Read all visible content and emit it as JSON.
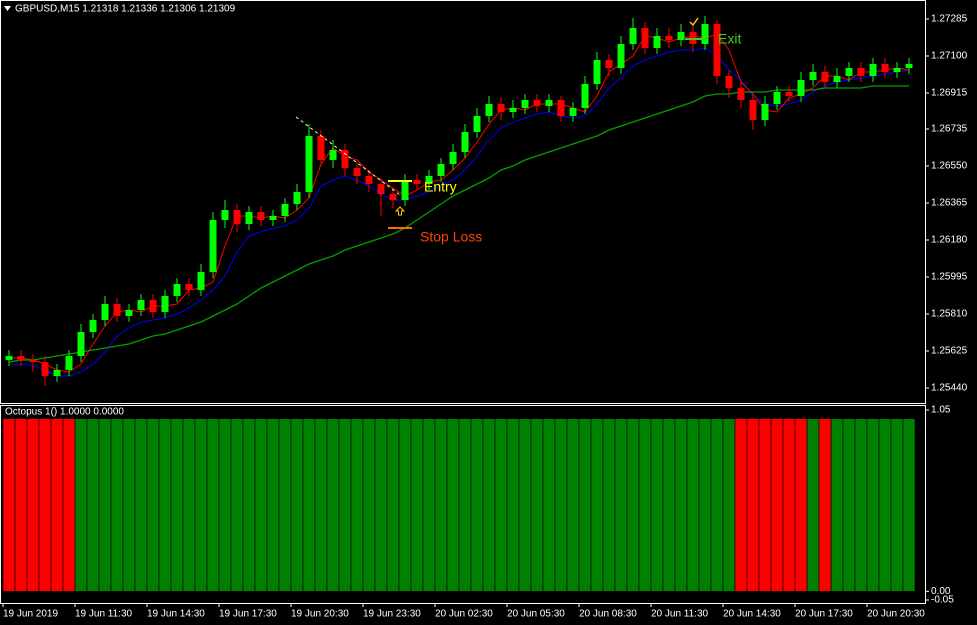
{
  "chart_data": [
    {
      "type": "candlestick",
      "title": "GBPUSD,M15 1.21318 1.21336 1.21306 1.21309",
      "x_labels": [
        "19 Jun 2019",
        "19 Jun 11:30",
        "19 Jun 14:30",
        "19 Jun 17:30",
        "19 Jun 20:30",
        "19 Jun 23:30",
        "20 Jun 02:30",
        "20 Jun 05:30",
        "20 Jun 08:30",
        "20 Jun 11:30",
        "20 Jun 14:30",
        "20 Jun 17:30",
        "20 Jun 20:30"
      ],
      "open": [
        1.2558,
        1.256,
        1.2558,
        1.2557,
        1.255,
        1.2553,
        1.256,
        1.2572,
        1.2578,
        1.2586,
        1.258,
        1.2583,
        1.2588,
        1.2582,
        1.259,
        1.2596,
        1.2593,
        1.2602,
        1.2628,
        1.2633,
        1.2626,
        1.2632,
        1.2628,
        1.263,
        1.2636,
        1.2642,
        1.267,
        1.2658,
        1.2663,
        1.2654,
        1.265,
        1.2646,
        1.2641,
        1.2638,
        1.2648,
        1.2646,
        1.265,
        1.2656,
        1.2662,
        1.2672,
        1.268,
        1.2686,
        1.2682,
        1.2684,
        1.2688,
        1.2685,
        1.2688,
        1.268,
        1.2684,
        1.2696,
        1.2708,
        1.2704,
        1.2716,
        1.2724,
        1.2714,
        1.272,
        1.2718,
        1.2722,
        1.2716,
        1.2726,
        1.27,
        1.2694,
        1.2688,
        1.2678,
        1.2686,
        1.2692,
        1.269,
        1.2698,
        1.2702,
        1.2697,
        1.27,
        1.2704,
        1.27,
        1.2706,
        1.2702,
        1.2704
      ],
      "high": [
        1.2563,
        1.2563,
        1.2561,
        1.256,
        1.2556,
        1.2563,
        1.2576,
        1.2581,
        1.259,
        1.2589,
        1.2586,
        1.2591,
        1.2591,
        1.2593,
        1.2599,
        1.2599,
        1.2606,
        1.2632,
        1.2638,
        1.2636,
        1.2635,
        1.2635,
        1.2633,
        1.2639,
        1.2646,
        1.2676,
        1.2673,
        1.2668,
        1.2666,
        1.2657,
        1.2653,
        1.2649,
        1.2644,
        1.2651,
        1.2651,
        1.2653,
        1.2659,
        1.2666,
        1.2676,
        1.2684,
        1.269,
        1.2689,
        1.2688,
        1.2691,
        1.2691,
        1.2691,
        1.269,
        1.2687,
        1.27,
        1.2712,
        1.2711,
        1.272,
        1.2729,
        1.2727,
        1.2724,
        1.2724,
        1.2726,
        1.2725,
        1.273,
        1.2728,
        1.2703,
        1.2697,
        1.2691,
        1.269,
        1.2695,
        1.2695,
        1.2702,
        1.2706,
        1.2705,
        1.2704,
        1.2707,
        1.2707,
        1.2709,
        1.2709,
        1.2707,
        1.2709
      ],
      "low": [
        1.2555,
        1.2555,
        1.2552,
        1.2545,
        1.2547,
        1.255,
        1.2557,
        1.2569,
        1.2575,
        1.2577,
        1.2577,
        1.258,
        1.2579,
        1.2579,
        1.2587,
        1.259,
        1.259,
        1.2599,
        1.2624,
        1.2622,
        1.2623,
        1.2625,
        1.2625,
        1.2627,
        1.2633,
        1.2639,
        1.2655,
        1.2654,
        1.265,
        1.2646,
        1.2642,
        1.263,
        1.2634,
        1.2635,
        1.2643,
        1.2643,
        1.2647,
        1.2653,
        1.2659,
        1.2669,
        1.2677,
        1.2678,
        1.2679,
        1.2681,
        1.2682,
        1.2682,
        1.2677,
        1.2677,
        1.2681,
        1.2693,
        1.27,
        1.2701,
        1.2713,
        1.2711,
        1.2711,
        1.2714,
        1.2715,
        1.2712,
        1.2713,
        1.2696,
        1.2689,
        1.2684,
        1.2673,
        1.2675,
        1.2683,
        1.2687,
        1.2687,
        1.2695,
        1.2694,
        1.2694,
        1.2697,
        1.2697,
        1.2697,
        1.2699,
        1.2699,
        1.2701
      ],
      "close": [
        1.256,
        1.2558,
        1.2557,
        1.255,
        1.2553,
        1.256,
        1.2572,
        1.2578,
        1.2586,
        1.258,
        1.2583,
        1.2588,
        1.2582,
        1.259,
        1.2596,
        1.2593,
        1.2602,
        1.2628,
        1.2633,
        1.2626,
        1.2632,
        1.2628,
        1.263,
        1.2636,
        1.2642,
        1.267,
        1.2658,
        1.2663,
        1.2654,
        1.265,
        1.2646,
        1.2641,
        1.2638,
        1.2648,
        1.2646,
        1.265,
        1.2656,
        1.2662,
        1.2672,
        1.268,
        1.2686,
        1.2682,
        1.2684,
        1.2688,
        1.2685,
        1.2688,
        1.268,
        1.2684,
        1.2696,
        1.2708,
        1.2704,
        1.2716,
        1.2724,
        1.2714,
        1.272,
        1.2718,
        1.2722,
        1.2716,
        1.2726,
        1.27,
        1.2694,
        1.2688,
        1.2678,
        1.2686,
        1.2692,
        1.269,
        1.2698,
        1.2702,
        1.2697,
        1.27,
        1.2704,
        1.27,
        1.2706,
        1.2702,
        1.2704,
        1.2706
      ],
      "up_color": "#00ff00",
      "down_color": "#ff0000",
      "lines": [
        {
          "color": "#0000ff",
          "values": [
            1.2556,
            1.2556,
            1.2555,
            1.2553,
            1.255,
            1.255,
            1.2552,
            1.2556,
            1.2562,
            1.257,
            1.2574,
            1.2577,
            1.2578,
            1.2579,
            1.2581,
            1.2584,
            1.2588,
            1.2593,
            1.26,
            1.2612,
            1.262,
            1.2622,
            1.2624,
            1.2625,
            1.2628,
            1.2634,
            1.2645,
            1.2648,
            1.265,
            1.2648,
            1.2645,
            1.2641,
            1.2638,
            1.2638,
            1.264,
            1.2642,
            1.2645,
            1.2648,
            1.2653,
            1.266,
            1.2668,
            1.2674,
            1.2677,
            1.2679,
            1.2681,
            1.2682,
            1.268,
            1.2679,
            1.268,
            1.2686,
            1.2694,
            1.2699,
            1.2705,
            1.2708,
            1.271,
            1.2712,
            1.2713,
            1.2713,
            1.2714,
            1.271,
            1.2703,
            1.2698,
            1.269,
            1.2686,
            1.2685,
            1.2686,
            1.2688,
            1.2692,
            1.2695,
            1.2697,
            1.2698,
            1.2699,
            1.27,
            1.2701,
            1.2702,
            1.2703
          ]
        },
        {
          "color": "#ff0000",
          "values": [
            1.2559,
            1.2559,
            1.2558,
            1.2556,
            1.2553,
            1.2552,
            1.2556,
            1.2566,
            1.2575,
            1.2582,
            1.2583,
            1.2582,
            1.2585,
            1.2585,
            1.2586,
            1.2593,
            1.2594,
            1.2597,
            1.2615,
            1.263,
            1.263,
            1.2629,
            1.263,
            1.2629,
            1.2633,
            1.2639,
            1.2656,
            1.2664,
            1.266,
            1.2658,
            1.2652,
            1.2648,
            1.2644,
            1.264,
            1.2643,
            1.2647,
            1.2648,
            1.2653,
            1.2659,
            1.2667,
            1.2676,
            1.2683,
            1.2684,
            1.2683,
            1.2686,
            1.2686,
            1.2686,
            1.2684,
            1.2682,
            1.269,
            1.2702,
            1.2706,
            1.271,
            1.272,
            1.2719,
            1.2717,
            1.2719,
            1.272,
            1.2719,
            1.2721,
            1.2713,
            1.2697,
            1.2691,
            1.2683,
            1.2682,
            1.2689,
            1.2691,
            1.2694,
            1.27,
            1.27,
            1.2698,
            1.2702,
            1.2702,
            1.2703,
            1.2704,
            1.2703
          ]
        },
        {
          "color": "#00a000",
          "values": [
            1.2557,
            1.2558,
            1.2558,
            1.2559,
            1.256,
            1.2561,
            1.2562,
            1.2563,
            1.2564,
            1.2565,
            1.2566,
            1.2568,
            1.257,
            1.2571,
            1.2573,
            1.2575,
            1.2577,
            1.258,
            1.2583,
            1.2586,
            1.259,
            1.2594,
            1.2597,
            1.26,
            1.2603,
            1.2606,
            1.2608,
            1.261,
            1.2613,
            1.2615,
            1.2617,
            1.2619,
            1.2621,
            1.2624,
            1.2628,
            1.2632,
            1.2636,
            1.264,
            1.2643,
            1.2646,
            1.2649,
            1.2653,
            1.2655,
            1.2658,
            1.266,
            1.2662,
            1.2664,
            1.2666,
            1.2668,
            1.267,
            1.2673,
            1.2675,
            1.2677,
            1.2679,
            1.2681,
            1.2683,
            1.2685,
            1.2687,
            1.269,
            1.2691,
            1.2691,
            1.2692,
            1.2692,
            1.2692,
            1.2693,
            1.2693,
            1.2693,
            1.2693,
            1.2694,
            1.2694,
            1.2694,
            1.2694,
            1.2695,
            1.2695,
            1.2695,
            1.2695
          ]
        }
      ],
      "ylim": [
        1.25365,
        1.2737
      ],
      "yticks": [
        1.27285,
        {
          "value": 1.271,
          "label": "1.27100"
        },
        1.26915,
        1.26735,
        {
          "value": 1.2655,
          "label": "1.26550"
        },
        1.26365,
        {
          "value": 1.2618,
          "label": "1.26180"
        },
        1.25995,
        {
          "value": 1.2581,
          "label": "1.25810"
        },
        1.25625,
        {
          "value": 1.2544,
          "label": "1.25440"
        }
      ],
      "annotations": [
        "Entry",
        "Stop Loss",
        "Exit"
      ]
    },
    {
      "type": "histogram",
      "title": "Octopus 1() 1.0000 0.0000",
      "up_color": "#008000",
      "down_color": "#ff0000",
      "up_values": [
        0,
        0,
        0,
        0,
        0,
        0,
        1,
        1,
        1,
        1,
        1,
        1,
        1,
        1,
        1,
        1,
        1,
        1,
        1,
        1,
        1,
        1,
        1,
        1,
        1,
        1,
        1,
        1,
        1,
        1,
        1,
        1,
        1,
        1,
        1,
        1,
        1,
        1,
        1,
        1,
        1,
        1,
        1,
        1,
        1,
        1,
        1,
        1,
        1,
        1,
        1,
        1,
        1,
        1,
        1,
        1,
        1,
        1,
        1,
        1,
        1,
        0,
        0,
        0,
        0,
        0,
        0,
        1,
        0,
        1,
        1,
        1,
        1,
        1,
        1,
        1
      ],
      "down_values": [
        1,
        1,
        1,
        1,
        1,
        1,
        0,
        0,
        0,
        0,
        0,
        0,
        0,
        0,
        0,
        0,
        0,
        0,
        0,
        0,
        0,
        0,
        0,
        0,
        0,
        0,
        0,
        0,
        0,
        0,
        0,
        0,
        0,
        0,
        0,
        0,
        0,
        0,
        0,
        0,
        0,
        0,
        0,
        0,
        0,
        0,
        0,
        0,
        0,
        0,
        0,
        0,
        0,
        0,
        0,
        0,
        0,
        0,
        0,
        0,
        0,
        1,
        1,
        1,
        1,
        1,
        1,
        0,
        1,
        0,
        0,
        0,
        0,
        0,
        0,
        0
      ],
      "ylim": [
        -0.05,
        1.05
      ],
      "yticks": [
        1.05,
        {
          "value": 0,
          "label": "0.00"
        },
        -0.05
      ]
    }
  ]
}
